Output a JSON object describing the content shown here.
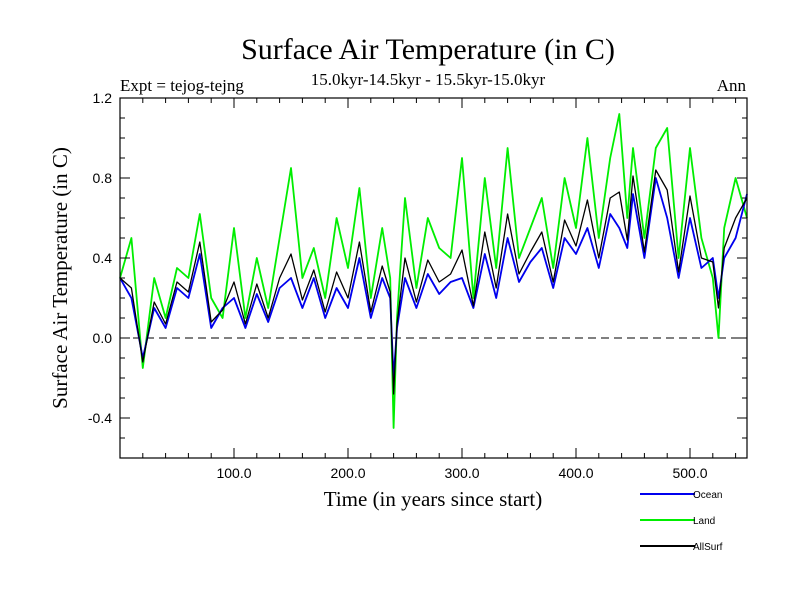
{
  "chart_data": {
    "type": "line",
    "title": "Surface Air Temperature (in C)",
    "subtitle": "15.0kyr-14.5kyr - 15.5kyr-15.0kyr",
    "expt_label": "Expt = tejog-tejng",
    "season_label": "Ann",
    "xlabel": "Time (in years since start)",
    "ylabel": "Surface Air Temperature (in C)",
    "xlim": [
      0,
      550
    ],
    "ylim": [
      -0.6,
      1.2
    ],
    "x_ticks": [
      100,
      200,
      300,
      400,
      500
    ],
    "x_tick_labels": [
      "100.0",
      "200.0",
      "300.0",
      "400.0",
      "500.0"
    ],
    "y_ticks": [
      -0.4,
      0.0,
      0.4,
      0.8,
      1.2
    ],
    "y_tick_labels": [
      "-0.4",
      "0.0",
      "0.4",
      "0.8",
      "1.2"
    ],
    "zero_line": 0.0,
    "series": [
      {
        "name": "Land",
        "color": "#00ee00",
        "x": [
          0,
          10,
          20,
          30,
          40,
          50,
          60,
          70,
          80,
          90,
          100,
          110,
          120,
          130,
          140,
          150,
          160,
          170,
          180,
          190,
          200,
          210,
          220,
          230,
          237,
          240,
          243,
          250,
          260,
          270,
          280,
          290,
          300,
          310,
          320,
          330,
          340,
          350,
          360,
          370,
          380,
          390,
          400,
          410,
          420,
          430,
          438,
          445,
          450,
          460,
          470,
          480,
          490,
          500,
          510,
          520,
          525,
          530,
          540,
          550
        ],
        "values": [
          0.3,
          0.5,
          -0.15,
          0.3,
          0.1,
          0.35,
          0.3,
          0.62,
          0.2,
          0.1,
          0.55,
          0.1,
          0.4,
          0.15,
          0.5,
          0.85,
          0.3,
          0.45,
          0.2,
          0.6,
          0.35,
          0.75,
          0.2,
          0.55,
          0.3,
          -0.45,
          0.1,
          0.7,
          0.25,
          0.6,
          0.45,
          0.4,
          0.9,
          0.2,
          0.8,
          0.35,
          0.95,
          0.4,
          0.55,
          0.7,
          0.35,
          0.8,
          0.55,
          1.0,
          0.5,
          0.9,
          1.12,
          0.6,
          0.95,
          0.5,
          0.95,
          1.05,
          0.4,
          0.95,
          0.5,
          0.3,
          0.0,
          0.55,
          0.8,
          0.6
        ]
      },
      {
        "name": "Ocean",
        "color": "#0000ee",
        "x": [
          0,
          10,
          20,
          30,
          40,
          50,
          60,
          70,
          80,
          90,
          100,
          110,
          120,
          130,
          140,
          150,
          160,
          170,
          180,
          190,
          200,
          210,
          220,
          230,
          237,
          240,
          243,
          250,
          260,
          270,
          280,
          290,
          300,
          310,
          320,
          330,
          340,
          350,
          360,
          370,
          380,
          390,
          400,
          410,
          420,
          430,
          438,
          445,
          450,
          460,
          470,
          480,
          490,
          500,
          510,
          520,
          525,
          530,
          540,
          550
        ],
        "values": [
          0.3,
          0.2,
          -0.1,
          0.15,
          0.05,
          0.25,
          0.2,
          0.42,
          0.05,
          0.15,
          0.2,
          0.05,
          0.22,
          0.08,
          0.25,
          0.3,
          0.15,
          0.3,
          0.1,
          0.25,
          0.15,
          0.4,
          0.1,
          0.3,
          0.2,
          -0.2,
          0.05,
          0.3,
          0.15,
          0.32,
          0.22,
          0.28,
          0.3,
          0.15,
          0.42,
          0.2,
          0.5,
          0.28,
          0.38,
          0.45,
          0.25,
          0.5,
          0.42,
          0.55,
          0.35,
          0.62,
          0.55,
          0.45,
          0.72,
          0.4,
          0.8,
          0.6,
          0.3,
          0.6,
          0.35,
          0.4,
          0.2,
          0.4,
          0.5,
          0.72
        ]
      },
      {
        "name": "AllSurf",
        "color": "#000000",
        "x": [
          0,
          10,
          20,
          30,
          40,
          50,
          60,
          70,
          80,
          90,
          100,
          110,
          120,
          130,
          140,
          150,
          160,
          170,
          180,
          190,
          200,
          210,
          220,
          230,
          237,
          240,
          243,
          250,
          260,
          270,
          280,
          290,
          300,
          310,
          320,
          330,
          340,
          350,
          360,
          370,
          380,
          390,
          400,
          410,
          420,
          430,
          438,
          445,
          450,
          460,
          470,
          480,
          490,
          500,
          510,
          520,
          525,
          530,
          540,
          550
        ],
        "values": [
          0.3,
          0.25,
          -0.12,
          0.18,
          0.07,
          0.28,
          0.23,
          0.48,
          0.08,
          0.14,
          0.28,
          0.07,
          0.27,
          0.1,
          0.3,
          0.42,
          0.19,
          0.34,
          0.13,
          0.33,
          0.2,
          0.48,
          0.13,
          0.36,
          0.23,
          -0.28,
          0.07,
          0.4,
          0.18,
          0.39,
          0.28,
          0.32,
          0.44,
          0.16,
          0.53,
          0.25,
          0.62,
          0.32,
          0.43,
          0.53,
          0.28,
          0.59,
          0.46,
          0.69,
          0.4,
          0.7,
          0.73,
          0.49,
          0.81,
          0.43,
          0.84,
          0.74,
          0.33,
          0.71,
          0.4,
          0.38,
          0.15,
          0.45,
          0.6,
          0.7
        ]
      }
    ],
    "legend": [
      {
        "name": "Ocean",
        "color": "#0000ee"
      },
      {
        "name": "Land",
        "color": "#00ee00"
      },
      {
        "name": "AllSurf",
        "color": "#000000"
      }
    ]
  }
}
